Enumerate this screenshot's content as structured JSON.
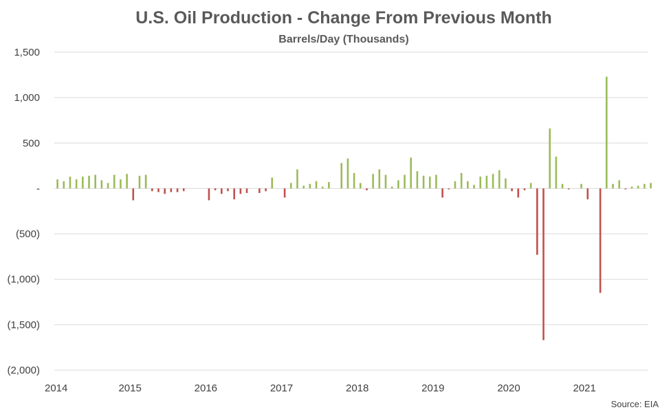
{
  "colors": {
    "positive": "#9bbb59",
    "negative": "#c0504d"
  },
  "chart_data": {
    "type": "bar",
    "title": "U.S. Oil Production - Change From Previous Month",
    "subtitle": "Barrels/Day (Thousands)",
    "source": "Source: EIA",
    "ylim": [
      -2000,
      1500
    ],
    "y_ticks": [
      1500,
      1000,
      500,
      0,
      -500,
      -1000,
      -1500,
      -2000
    ],
    "y_tick_labels": [
      "1,500",
      "1,000",
      "500",
      "-",
      "(500)",
      "(1,000)",
      "(1,500)",
      "(2,000)"
    ],
    "x_tick_labels": [
      "2014",
      "2015",
      "2016",
      "2017",
      "2018",
      "2019",
      "2020",
      "2021"
    ],
    "grid": true,
    "start": "2014-01",
    "values": [
      100,
      80,
      130,
      100,
      130,
      140,
      150,
      90,
      60,
      150,
      100,
      160,
      -130,
      140,
      150,
      -30,
      -40,
      -60,
      -40,
      -40,
      -30,
      0,
      0,
      0,
      -130,
      -20,
      -60,
      -30,
      -120,
      -60,
      -50,
      0,
      -50,
      -30,
      120,
      0,
      -100,
      60,
      210,
      30,
      50,
      80,
      20,
      70,
      0,
      280,
      330,
      170,
      60,
      -20,
      160,
      210,
      150,
      20,
      90,
      150,
      340,
      190,
      140,
      130,
      150,
      -100,
      -10,
      80,
      170,
      80,
      40,
      130,
      140,
      160,
      200,
      110,
      -30,
      -100,
      -20,
      60,
      -730,
      -1670,
      660,
      350,
      50,
      -10,
      0,
      50,
      -120,
      0,
      -1150,
      1230,
      50,
      90,
      -10,
      20,
      30,
      50,
      60
    ]
  }
}
